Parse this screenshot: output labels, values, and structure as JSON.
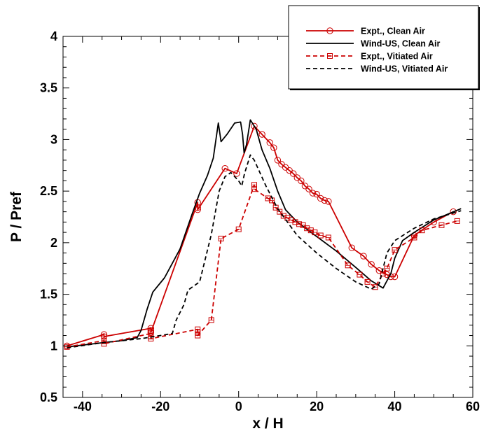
{
  "chart_data": {
    "type": "line",
    "xlabel": "x / H",
    "ylabel": "P / Pref",
    "xlim": [
      -45,
      60
    ],
    "ylim": [
      0.5,
      4
    ],
    "x_ticks": [
      -40,
      -20,
      0,
      20,
      40,
      60
    ],
    "y_ticks": [
      0.5,
      1,
      1.5,
      2,
      2.5,
      3,
      3.5,
      4
    ],
    "grid": false,
    "legend_position": "top-right",
    "series": [
      {
        "name": "Expt., Clean Air",
        "color": "#cc0000",
        "line_style": "solid",
        "marker": "circle",
        "points": [
          [
            -44,
            1.0
          ],
          [
            -34.5,
            1.11
          ],
          [
            -34.5,
            1.09
          ],
          [
            -22.5,
            1.17
          ],
          [
            -22.5,
            1.15
          ],
          [
            -22.5,
            1.13
          ],
          [
            -10.5,
            2.39
          ],
          [
            -10.5,
            2.34
          ],
          [
            -10.5,
            2.32
          ],
          [
            -3.5,
            2.72
          ],
          [
            -0.5,
            2.67
          ],
          [
            4,
            3.13
          ],
          [
            6,
            3.05
          ],
          [
            8,
            2.97
          ],
          [
            9,
            2.92
          ],
          [
            10,
            2.8
          ],
          [
            11,
            2.76
          ],
          [
            12,
            2.73
          ],
          [
            13,
            2.7
          ],
          [
            14,
            2.67
          ],
          [
            15,
            2.63
          ],
          [
            16,
            2.6
          ],
          [
            17,
            2.55
          ],
          [
            18,
            2.52
          ],
          [
            19,
            2.48
          ],
          [
            20,
            2.47
          ],
          [
            21,
            2.43
          ],
          [
            22,
            2.41
          ],
          [
            23,
            2.4
          ],
          [
            29,
            1.95
          ],
          [
            32,
            1.87
          ],
          [
            34,
            1.79
          ],
          [
            36,
            1.73
          ],
          [
            38,
            1.69
          ],
          [
            39,
            1.67
          ],
          [
            40,
            1.67
          ],
          [
            45,
            2.07
          ],
          [
            50,
            2.2
          ],
          [
            55,
            2.3
          ]
        ]
      },
      {
        "name": "Wind-US, Clean Air",
        "color": "#000000",
        "line_style": "solid",
        "marker": "none",
        "points": [
          [
            -44,
            0.99
          ],
          [
            -35,
            1.03
          ],
          [
            -30,
            1.05
          ],
          [
            -26,
            1.08
          ],
          [
            -25,
            1.15
          ],
          [
            -23.5,
            1.35
          ],
          [
            -22,
            1.52
          ],
          [
            -19,
            1.66
          ],
          [
            -15,
            1.94
          ],
          [
            -12,
            2.27
          ],
          [
            -10,
            2.48
          ],
          [
            -8,
            2.65
          ],
          [
            -6.5,
            2.82
          ],
          [
            -5.2,
            3.16
          ],
          [
            -4.5,
            2.98
          ],
          [
            -3,
            3.05
          ],
          [
            -1,
            3.16
          ],
          [
            0.5,
            3.17
          ],
          [
            1,
            3.05
          ],
          [
            1.4,
            2.87
          ],
          [
            2,
            2.95
          ],
          [
            3,
            3.19
          ],
          [
            4.5,
            3.1
          ],
          [
            6,
            2.9
          ],
          [
            8,
            2.72
          ],
          [
            10,
            2.5
          ],
          [
            12,
            2.32
          ],
          [
            15,
            2.2
          ],
          [
            20,
            2.06
          ],
          [
            25,
            1.92
          ],
          [
            30,
            1.76
          ],
          [
            34,
            1.63
          ],
          [
            37,
            1.56
          ],
          [
            39,
            1.7
          ],
          [
            40,
            1.85
          ],
          [
            42,
            2.02
          ],
          [
            45,
            2.1
          ],
          [
            50,
            2.22
          ],
          [
            57,
            2.33
          ]
        ]
      },
      {
        "name": "Expt., Vitiated Air",
        "color": "#cc0000",
        "line_style": "dashed",
        "marker": "square",
        "points": [
          [
            -44,
            0.99
          ],
          [
            -34.5,
            1.05
          ],
          [
            -34.5,
            1.02
          ],
          [
            -22.5,
            1.12
          ],
          [
            -22.5,
            1.09
          ],
          [
            -22.5,
            1.07
          ],
          [
            -10.5,
            1.16
          ],
          [
            -10.5,
            1.13
          ],
          [
            -10.5,
            1.1
          ],
          [
            -7,
            1.25
          ],
          [
            -4.5,
            2.04
          ],
          [
            0,
            2.13
          ],
          [
            4,
            2.56
          ],
          [
            4,
            2.52
          ],
          [
            7.5,
            2.43
          ],
          [
            8.5,
            2.41
          ],
          [
            9.5,
            2.34
          ],
          [
            10.5,
            2.3
          ],
          [
            11.5,
            2.26
          ],
          [
            12.5,
            2.24
          ],
          [
            13.5,
            2.22
          ],
          [
            14.5,
            2.2
          ],
          [
            15.5,
            2.18
          ],
          [
            16.5,
            2.17
          ],
          [
            17.5,
            2.14
          ],
          [
            18.5,
            2.12
          ],
          [
            19.5,
            2.1
          ],
          [
            21,
            2.07
          ],
          [
            23,
            2.05
          ],
          [
            28,
            1.78
          ],
          [
            31,
            1.69
          ],
          [
            33,
            1.62
          ],
          [
            35,
            1.57
          ],
          [
            37,
            1.7
          ],
          [
            38,
            1.75
          ],
          [
            40,
            1.93
          ],
          [
            45,
            2.05
          ],
          [
            47,
            2.12
          ],
          [
            52,
            2.17
          ],
          [
            56,
            2.21
          ]
        ]
      },
      {
        "name": "Wind-US, Vitiated Air",
        "color": "#000000",
        "line_style": "dashed",
        "marker": "none",
        "points": [
          [
            -44,
            0.98
          ],
          [
            -35,
            1.03
          ],
          [
            -25,
            1.07
          ],
          [
            -20,
            1.1
          ],
          [
            -17,
            1.12
          ],
          [
            -16,
            1.25
          ],
          [
            -14,
            1.4
          ],
          [
            -13,
            1.54
          ],
          [
            -10,
            1.62
          ],
          [
            -7,
            2.08
          ],
          [
            -5,
            2.5
          ],
          [
            -3.5,
            2.64
          ],
          [
            -2,
            2.68
          ],
          [
            0,
            2.6
          ],
          [
            0.8,
            2.55
          ],
          [
            1.5,
            2.67
          ],
          [
            3,
            2.85
          ],
          [
            4,
            2.8
          ],
          [
            7,
            2.55
          ],
          [
            10,
            2.33
          ],
          [
            15,
            2.07
          ],
          [
            20,
            1.9
          ],
          [
            25,
            1.75
          ],
          [
            30,
            1.62
          ],
          [
            34,
            1.55
          ],
          [
            36,
            1.6
          ],
          [
            38,
            1.9
          ],
          [
            40,
            2.02
          ],
          [
            45,
            2.14
          ],
          [
            50,
            2.23
          ],
          [
            57,
            2.31
          ]
        ]
      }
    ]
  }
}
